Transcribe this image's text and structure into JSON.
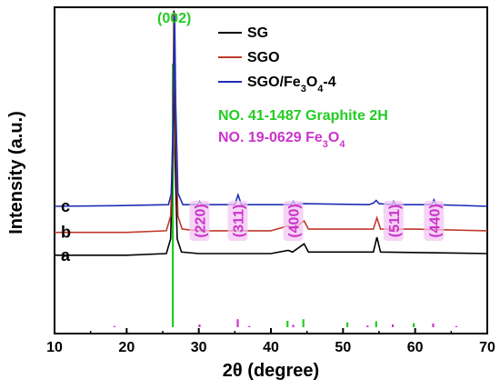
{
  "chart_data": {
    "type": "line",
    "xlabel": "2θ (degree)",
    "ylabel": "Intensity (a.u.)",
    "xlim": [
      10,
      70
    ],
    "xticks": [
      10,
      20,
      30,
      40,
      50,
      60,
      70
    ],
    "legend_position": "top-right",
    "series": [
      {
        "name": "SG",
        "color": "#000000",
        "curve_label": "a",
        "baseline": 0.24,
        "points": [
          [
            10,
            0.24
          ],
          [
            20,
            0.24
          ],
          [
            25.5,
            0.245
          ],
          [
            26.1,
            0.29
          ],
          [
            26.4,
            0.55
          ],
          [
            26.55,
            0.99
          ],
          [
            26.7,
            0.55
          ],
          [
            27.0,
            0.29
          ],
          [
            27.6,
            0.25
          ],
          [
            30,
            0.245
          ],
          [
            40,
            0.245
          ],
          [
            42.4,
            0.255
          ],
          [
            43.0,
            0.25
          ],
          [
            44.6,
            0.275
          ],
          [
            45.2,
            0.25
          ],
          [
            54.2,
            0.25
          ],
          [
            54.7,
            0.295
          ],
          [
            55.2,
            0.25
          ],
          [
            70,
            0.245
          ]
        ]
      },
      {
        "name": "SGO",
        "color": "#c0392b",
        "curve_label": "b",
        "baseline": 0.31,
        "points": [
          [
            10,
            0.31
          ],
          [
            20,
            0.31
          ],
          [
            25.5,
            0.315
          ],
          [
            26.1,
            0.36
          ],
          [
            26.4,
            0.6
          ],
          [
            26.6,
            0.985
          ],
          [
            26.8,
            0.6
          ],
          [
            27.1,
            0.36
          ],
          [
            27.7,
            0.32
          ],
          [
            30,
            0.315
          ],
          [
            40,
            0.315
          ],
          [
            42.4,
            0.33
          ],
          [
            43.0,
            0.32
          ],
          [
            44.6,
            0.345
          ],
          [
            45.2,
            0.32
          ],
          [
            54.2,
            0.32
          ],
          [
            54.7,
            0.355
          ],
          [
            55.2,
            0.32
          ],
          [
            60,
            0.32
          ],
          [
            70,
            0.315
          ]
        ]
      },
      {
        "name": "SGO/Fe3O4-4",
        "color": "#1f2db5",
        "curve_label": "c",
        "baseline": 0.39,
        "points": [
          [
            10,
            0.39
          ],
          [
            18.4,
            0.392
          ],
          [
            25.8,
            0.395
          ],
          [
            26.2,
            0.43
          ],
          [
            26.5,
            0.7
          ],
          [
            26.65,
            0.975
          ],
          [
            26.8,
            0.7
          ],
          [
            27.1,
            0.43
          ],
          [
            27.8,
            0.395
          ],
          [
            29.8,
            0.395
          ],
          [
            30.1,
            0.405
          ],
          [
            30.4,
            0.395
          ],
          [
            35.0,
            0.395
          ],
          [
            35.45,
            0.425
          ],
          [
            35.9,
            0.395
          ],
          [
            42.8,
            0.395
          ],
          [
            43.1,
            0.405
          ],
          [
            43.4,
            0.395
          ],
          [
            44.4,
            0.398
          ],
          [
            53.6,
            0.395
          ],
          [
            54.2,
            0.4
          ],
          [
            54.6,
            0.408
          ],
          [
            55.0,
            0.398
          ],
          [
            56.8,
            0.395
          ],
          [
            57.0,
            0.405
          ],
          [
            57.3,
            0.395
          ],
          [
            62.3,
            0.395
          ],
          [
            62.6,
            0.41
          ],
          [
            62.9,
            0.395
          ],
          [
            70,
            0.39
          ]
        ]
      }
    ],
    "reference_patterns": [
      {
        "name": "NO. 41-1487 Graphite 2H",
        "color": "#22cc22",
        "peaks": [
          [
            26.4,
            1.0
          ],
          [
            42.3,
            0.16
          ],
          [
            44.5,
            0.2
          ],
          [
            50.6,
            0.12
          ],
          [
            54.6,
            0.15
          ],
          [
            59.8,
            0.1
          ]
        ]
      },
      {
        "name": "NO. 19-0629 Fe3O4",
        "color": "#cc33cc",
        "peaks": [
          [
            18.3,
            0.03
          ],
          [
            30.1,
            0.07
          ],
          [
            35.4,
            0.2
          ],
          [
            37.0,
            0.03
          ],
          [
            43.1,
            0.06
          ],
          [
            53.4,
            0.04
          ],
          [
            56.9,
            0.07
          ],
          [
            62.5,
            0.09
          ],
          [
            65.7,
            0.03
          ]
        ]
      }
    ],
    "annotations": [
      {
        "text": "(002)",
        "x": 26.6,
        "color": "#22cc22",
        "style": "horizontal-top"
      },
      {
        "text": "(220)",
        "x": 30.1,
        "color": "#cc33cc",
        "style": "vertical"
      },
      {
        "text": "(311)",
        "x": 35.4,
        "color": "#cc33cc",
        "style": "vertical"
      },
      {
        "text": "(400)",
        "x": 43.1,
        "color": "#cc33cc",
        "style": "vertical"
      },
      {
        "text": "(511)",
        "x": 57.0,
        "color": "#cc33cc",
        "style": "vertical"
      },
      {
        "text": "(440)",
        "x": 62.6,
        "color": "#cc33cc",
        "style": "vertical"
      }
    ]
  },
  "legend": {
    "items": [
      {
        "label": "SG",
        "color": "#000000"
      },
      {
        "label": "SGO",
        "color": "#c0392b"
      },
      {
        "label": "SGO/Fe3O4-4",
        "color": "#1f2db5"
      }
    ],
    "reference_notes": [
      {
        "text": "NO. 41-1487 Graphite 2H",
        "color": "#22cc22"
      },
      {
        "text": "NO. 19-0629 Fe3O4",
        "color": "#cc33cc"
      }
    ]
  }
}
